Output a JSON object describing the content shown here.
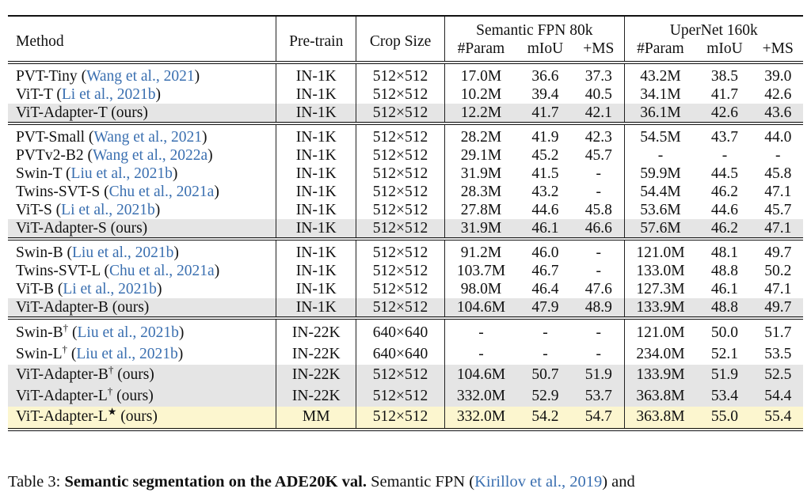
{
  "header": {
    "method": "Method",
    "pretrain": "Pre-train",
    "crop": "Crop Size",
    "fpn": "Semantic FPN 80k",
    "upernet": "UperNet 160k",
    "param": "#Param",
    "miou": "mIoU",
    "ms": "+MS"
  },
  "groups": [
    [
      {
        "name": "PVT-Tiny",
        "sup": "",
        "cite": "Wang et al., 2021",
        "suffix": "",
        "pre": "IN-1K",
        "crop": "512×512",
        "fp": "17.0M",
        "fm": "36.6",
        "fms": "37.3",
        "up": "43.2M",
        "um": "38.5",
        "ums": "39.0",
        "hl": ""
      },
      {
        "name": "ViT-T",
        "sup": "",
        "cite": "Li et al., 2021b",
        "suffix": "",
        "pre": "IN-1K",
        "crop": "512×512",
        "fp": "10.2M",
        "fm": "39.4",
        "fms": "40.5",
        "up": "34.1M",
        "um": "41.7",
        "ums": "42.6",
        "hl": ""
      },
      {
        "name": "ViT-Adapter-T",
        "sup": "",
        "cite": "",
        "suffix": "(ours)",
        "pre": "IN-1K",
        "crop": "512×512",
        "fp": "12.2M",
        "fm": "41.7",
        "fms": "42.1",
        "up": "36.1M",
        "um": "42.6",
        "ums": "43.6",
        "hl": "gray"
      }
    ],
    [
      {
        "name": "PVT-Small",
        "sup": "",
        "cite": "Wang et al., 2021",
        "suffix": "",
        "pre": "IN-1K",
        "crop": "512×512",
        "fp": "28.2M",
        "fm": "41.9",
        "fms": "42.3",
        "up": "54.5M",
        "um": "43.7",
        "ums": "44.0",
        "hl": ""
      },
      {
        "name": "PVTv2-B2",
        "sup": "",
        "cite": "Wang et al., 2022a",
        "suffix": "",
        "pre": "IN-1K",
        "crop": "512×512",
        "fp": "29.1M",
        "fm": "45.2",
        "fms": "45.7",
        "up": "-",
        "um": "-",
        "ums": "-",
        "hl": ""
      },
      {
        "name": "Swin-T",
        "sup": "",
        "cite": "Liu et al., 2021b",
        "suffix": "",
        "pre": "IN-1K",
        "crop": "512×512",
        "fp": "31.9M",
        "fm": "41.5",
        "fms": "-",
        "up": "59.9M",
        "um": "44.5",
        "ums": "45.8",
        "hl": ""
      },
      {
        "name": "Twins-SVT-S",
        "sup": "",
        "cite": "Chu et al., 2021a",
        "suffix": "",
        "pre": "IN-1K",
        "crop": "512×512",
        "fp": "28.3M",
        "fm": "43.2",
        "fms": "-",
        "up": "54.4M",
        "um": "46.2",
        "ums": "47.1",
        "hl": ""
      },
      {
        "name": "ViT-S",
        "sup": "",
        "cite": "Li et al., 2021b",
        "suffix": "",
        "pre": "IN-1K",
        "crop": "512×512",
        "fp": "27.8M",
        "fm": "44.6",
        "fms": "45.8",
        "up": "53.6M",
        "um": "44.6",
        "ums": "45.7",
        "hl": ""
      },
      {
        "name": "ViT-Adapter-S",
        "sup": "",
        "cite": "",
        "suffix": "(ours)",
        "pre": "IN-1K",
        "crop": "512×512",
        "fp": "31.9M",
        "fm": "46.1",
        "fms": "46.6",
        "up": "57.6M",
        "um": "46.2",
        "ums": "47.1",
        "hl": "gray"
      }
    ],
    [
      {
        "name": "Swin-B",
        "sup": "",
        "cite": "Liu et al., 2021b",
        "suffix": "",
        "pre": "IN-1K",
        "crop": "512×512",
        "fp": "91.2M",
        "fm": "46.0",
        "fms": "-",
        "up": "121.0M",
        "um": "48.1",
        "ums": "49.7",
        "hl": ""
      },
      {
        "name": "Twins-SVT-L",
        "sup": "",
        "cite": "Chu et al., 2021a",
        "suffix": "",
        "pre": "IN-1K",
        "crop": "512×512",
        "fp": "103.7M",
        "fm": "46.7",
        "fms": "-",
        "up": "133.0M",
        "um": "48.8",
        "ums": "50.2",
        "hl": ""
      },
      {
        "name": "ViT-B",
        "sup": "",
        "cite": "Li et al., 2021b",
        "suffix": "",
        "pre": "IN-1K",
        "crop": "512×512",
        "fp": "98.0M",
        "fm": "46.4",
        "fms": "47.6",
        "up": "127.3M",
        "um": "46.1",
        "ums": "47.1",
        "hl": ""
      },
      {
        "name": "ViT-Adapter-B",
        "sup": "",
        "cite": "",
        "suffix": "(ours)",
        "pre": "IN-1K",
        "crop": "512×512",
        "fp": "104.6M",
        "fm": "47.9",
        "fms": "48.9",
        "up": "133.9M",
        "um": "48.8",
        "ums": "49.7",
        "hl": "gray"
      }
    ],
    [
      {
        "name": "Swin-B",
        "sup": "†",
        "cite": "Liu et al., 2021b",
        "suffix": "",
        "pre": "IN-22K",
        "crop": "640×640",
        "fp": "-",
        "fm": "-",
        "fms": "-",
        "up": "121.0M",
        "um": "50.0",
        "ums": "51.7",
        "hl": ""
      },
      {
        "name": "Swin-L",
        "sup": "†",
        "cite": "Liu et al., 2021b",
        "suffix": "",
        "pre": "IN-22K",
        "crop": "640×640",
        "fp": "-",
        "fm": "-",
        "fms": "-",
        "up": "234.0M",
        "um": "52.1",
        "ums": "53.5",
        "hl": ""
      },
      {
        "name": "ViT-Adapter-B",
        "sup": "†",
        "cite": "",
        "suffix": "(ours)",
        "pre": "IN-22K",
        "crop": "512×512",
        "fp": "104.6M",
        "fm": "50.7",
        "fms": "51.9",
        "up": "133.9M",
        "um": "51.9",
        "ums": "52.5",
        "hl": "gray"
      },
      {
        "name": "ViT-Adapter-L",
        "sup": "†",
        "cite": "",
        "suffix": "(ours)",
        "pre": "IN-22K",
        "crop": "512×512",
        "fp": "332.0M",
        "fm": "52.9",
        "fms": "53.7",
        "up": "363.8M",
        "um": "53.4",
        "ums": "54.4",
        "hl": "gray"
      },
      {
        "name": "ViT-Adapter-L",
        "sup": "★",
        "cite": "",
        "suffix": "(ours)",
        "pre": "MM",
        "crop": "512×512",
        "fp": "332.0M",
        "fm": "54.2",
        "fms": "54.7",
        "up": "363.8M",
        "um": "55.0",
        "ums": "55.4",
        "hl": "yellow"
      }
    ]
  ],
  "caption": {
    "label": "Table 3:",
    "bold": "Semantic segmentation on the ADE20K val.",
    "text": "Semantic FPN (",
    "cite": "Kirillov et al., 2019",
    "end": ") and"
  },
  "colors": {
    "citation": "#3a6fb0",
    "highlight_gray": "#e5e5e5",
    "highlight_yellow": "#fcf6cf"
  }
}
